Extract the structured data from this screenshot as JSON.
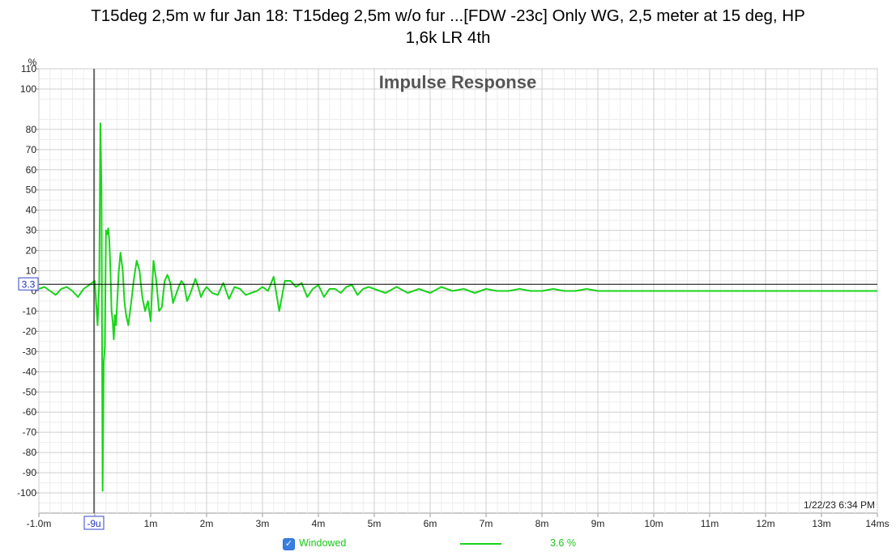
{
  "title_line1": "T15deg 2,5m w fur Jan 18: T15deg 2,5m w/o fur ...[FDW -23c] Only WG, 2,5 meter at 15 deg, HP",
  "title_line2": "1,6k LR 4th",
  "timestamp": "1/22/23 6:34 PM",
  "legend": {
    "checkbox_checked": true,
    "checkbox_label": "Windowed",
    "series_value": "3.6 %",
    "series_color": "#19d419"
  },
  "cursor": {
    "x_label": "-9u",
    "y_label": "3.3"
  },
  "chart_data": {
    "type": "line",
    "title": "Impulse Response",
    "ylabel": "%",
    "xlabel": "",
    "xlim": [
      -1.0,
      14.0
    ],
    "ylim": [
      -110,
      110
    ],
    "x_unit": "ms",
    "xticks": [
      -1,
      0,
      1,
      2,
      3,
      4,
      5,
      6,
      7,
      8,
      9,
      10,
      11,
      12,
      13,
      14
    ],
    "xtick_labels": [
      "-1.0m",
      "",
      "1m",
      "2m",
      "3m",
      "4m",
      "5m",
      "6m",
      "7m",
      "8m",
      "9m",
      "10m",
      "11m",
      "12m",
      "13m",
      "14ms"
    ],
    "yticks": [
      110,
      100,
      80,
      70,
      60,
      50,
      40,
      30,
      20,
      10,
      0,
      -10,
      -20,
      -30,
      -40,
      -50,
      -60,
      -70,
      -80,
      -90,
      -100
    ],
    "grid": true,
    "series": [
      {
        "color": "#19d419",
        "x": [
          -1.0,
          -0.9,
          -0.8,
          -0.7,
          -0.6,
          -0.5,
          -0.4,
          -0.3,
          -0.2,
          -0.1,
          -0.05,
          0.0,
          0.05,
          0.08,
          0.1,
          0.12,
          0.14,
          0.16,
          0.18,
          0.2,
          0.22,
          0.24,
          0.26,
          0.28,
          0.3,
          0.32,
          0.34,
          0.36,
          0.38,
          0.4,
          0.43,
          0.46,
          0.5,
          0.53,
          0.56,
          0.6,
          0.65,
          0.7,
          0.75,
          0.8,
          0.85,
          0.9,
          0.95,
          1.0,
          1.05,
          1.1,
          1.15,
          1.2,
          1.25,
          1.3,
          1.35,
          1.4,
          1.45,
          1.5,
          1.55,
          1.6,
          1.65,
          1.7,
          1.75,
          1.8,
          1.85,
          1.9,
          1.95,
          2.0,
          2.1,
          2.2,
          2.3,
          2.4,
          2.5,
          2.6,
          2.7,
          2.8,
          2.9,
          3.0,
          3.1,
          3.2,
          3.3,
          3.4,
          3.5,
          3.6,
          3.7,
          3.8,
          3.9,
          4.0,
          4.1,
          4.2,
          4.3,
          4.4,
          4.5,
          4.6,
          4.7,
          4.8,
          4.9,
          5.0,
          5.2,
          5.4,
          5.6,
          5.8,
          6.0,
          6.2,
          6.4,
          6.6,
          6.8,
          7.0,
          7.2,
          7.4,
          7.6,
          7.8,
          8.0,
          8.2,
          8.4,
          8.6,
          8.8,
          9.0,
          9.2,
          9.4,
          9.6,
          9.8,
          10.0,
          10.5,
          11.0,
          11.5,
          12.0,
          12.5,
          13.0,
          13.5,
          14.0
        ],
        "y": [
          1,
          2,
          0,
          -2,
          1,
          2,
          0,
          -3,
          1,
          3,
          4,
          5,
          -17,
          5,
          83,
          50,
          -99,
          -35,
          -28,
          30,
          28,
          31,
          25,
          10,
          -10,
          -15,
          -24,
          -12,
          -17,
          -6,
          10,
          19,
          10,
          -5,
          -12,
          -17,
          -6,
          6,
          15,
          10,
          -3,
          -10,
          -5,
          -15,
          15,
          5,
          -10,
          -8,
          5,
          8,
          4,
          -6,
          -2,
          2,
          5,
          3,
          -5,
          -2,
          2,
          6,
          2,
          -3,
          0,
          2,
          -1,
          -2,
          4,
          -4,
          2,
          1,
          -2,
          -1,
          0,
          2,
          0,
          7,
          -10,
          5,
          5,
          2,
          4,
          -3,
          1,
          3,
          -3,
          1,
          1,
          -1,
          2,
          3,
          -2,
          1,
          2,
          1,
          -1,
          2,
          -1,
          1,
          -1,
          2,
          0,
          1,
          -1,
          1,
          0,
          0,
          1,
          0,
          0,
          1,
          0,
          0,
          1,
          0,
          0,
          0,
          0,
          0,
          0,
          0,
          0,
          0,
          0,
          0,
          0,
          0,
          0
        ]
      }
    ]
  }
}
